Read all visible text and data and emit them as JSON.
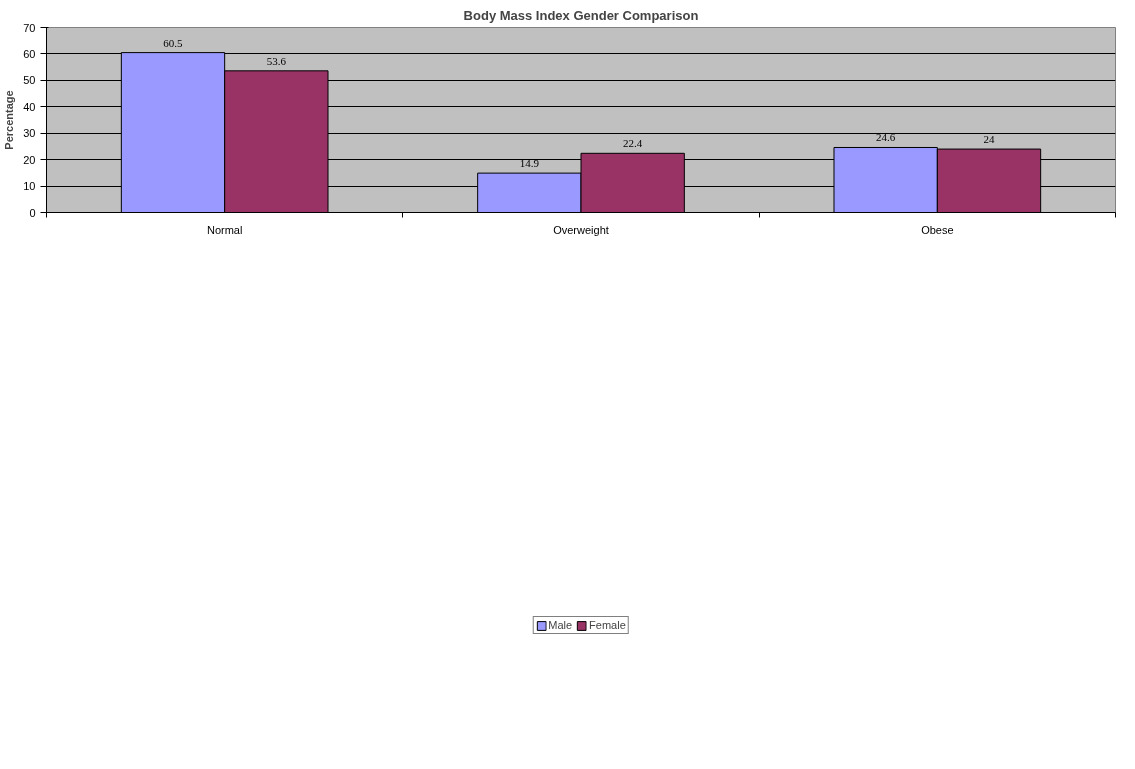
{
  "chart_data": {
    "type": "bar",
    "title": "Body Mass Index Gender Comparison",
    "ylabel": "Percentage",
    "categories": [
      "Normal",
      "Overweight",
      "Obese"
    ],
    "series": [
      {
        "name": "Male",
        "color": "#9999ff",
        "values": [
          60.5,
          14.9,
          24.6
        ]
      },
      {
        "name": "Female",
        "color": "#993366",
        "values": [
          53.6,
          22.4,
          24
        ]
      }
    ],
    "ylim": [
      0,
      70
    ],
    "yticks": [
      0,
      10,
      20,
      30,
      40,
      50,
      60,
      70
    ],
    "grid": "y",
    "legend": "bottom",
    "data_labels": true
  }
}
